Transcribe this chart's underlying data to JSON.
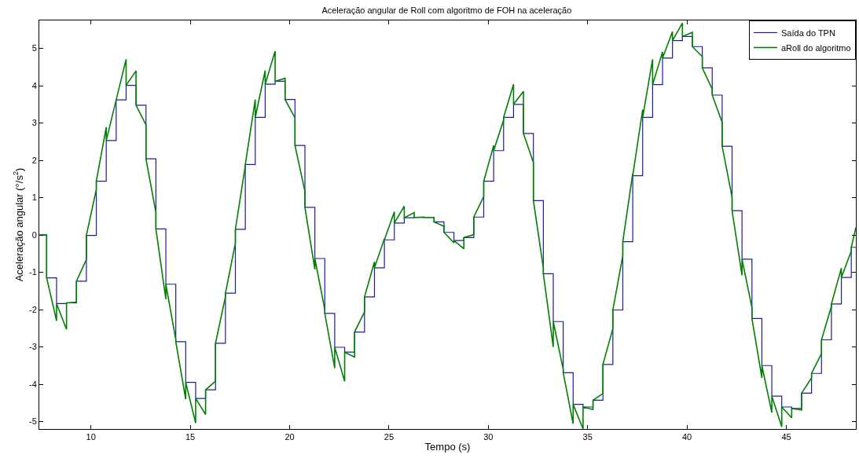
{
  "chart_data": {
    "type": "line",
    "title": "Aceleração angular de Roll com algoritmo de FOH na aceleração",
    "xlabel": "Tempo (s)",
    "ylabel": "Aceleração angular (°/s$^{2}$)",
    "xlim": [
      7.4,
      48.5
    ],
    "xticks": [
      10,
      15,
      20,
      25,
      30,
      35,
      40,
      45
    ],
    "ylim": [
      -5.2,
      5.75
    ],
    "yticks": [
      -5,
      -4,
      -3,
      -2,
      -1,
      0,
      1,
      2,
      3,
      4,
      5
    ],
    "grid": false,
    "legend": "top right",
    "marker": "none",
    "line_style": "solid",
    "series": [
      {
        "name": "Saída do TPN",
        "type": "step",
        "color": "#1c1c9c",
        "x": [
          7.42,
          7.77,
          8.27,
          8.77,
          9.27,
          9.77,
          10.27,
          10.77,
          11.27,
          11.77,
          12.27,
          12.77,
          13.27,
          13.77,
          14.27,
          14.77,
          15.27,
          15.77,
          16.27,
          16.77,
          17.27,
          17.77,
          18.27,
          18.77,
          19.27,
          19.77,
          20.27,
          20.77,
          21.27,
          21.77,
          22.27,
          22.77,
          23.27,
          23.77,
          24.27,
          24.77,
          25.27,
          25.77,
          26.27,
          26.77,
          27.27,
          27.77,
          28.27,
          28.77,
          29.27,
          29.77,
          30.27,
          30.77,
          31.27,
          31.77,
          32.27,
          32.77,
          33.27,
          33.77,
          34.27,
          34.77,
          35.27,
          35.77,
          36.27,
          36.77,
          37.27,
          37.77,
          38.27,
          38.77,
          39.27,
          39.77,
          40.27,
          40.77,
          41.27,
          41.77,
          42.27,
          42.77,
          43.27,
          43.77,
          44.27,
          44.77,
          45.27,
          45.77,
          46.27,
          46.77,
          47.27,
          47.77,
          48.27,
          48.5
        ],
        "values": [
          0,
          -1.15,
          -1.84,
          -1.82,
          -1.24,
          -0.01,
          1.44,
          2.53,
          3.62,
          4.01,
          3.48,
          2.04,
          0.16,
          -1.32,
          -2.86,
          -3.95,
          -4.38,
          -4.15,
          -2.9,
          -1.56,
          0.15,
          1.89,
          3.15,
          4.04,
          4.12,
          3.63,
          2.4,
          0.74,
          -0.63,
          -2.1,
          -3.01,
          -3.14,
          -2.6,
          -1.66,
          -0.88,
          -0.13,
          0.32,
          0.46,
          0.47,
          0.47,
          0.35,
          0.07,
          -0.15,
          -0.07,
          0.48,
          1.44,
          2.26,
          3.15,
          3.5,
          2.72,
          0.92,
          -1.04,
          -2.32,
          -3.69,
          -4.54,
          -4.61,
          -4.43,
          -3.47,
          -2.01,
          -0.18,
          1.59,
          3.15,
          4.03,
          4.74,
          5.21,
          5.32,
          5.05,
          4.48,
          3.75,
          2.38,
          0.65,
          -0.65,
          -2.24,
          -3.5,
          -4.32,
          -4.61,
          -4.65,
          -4.24,
          -3.71,
          -2.81,
          -1.85,
          -1.14,
          -0.33,
          -0.33
        ]
      },
      {
        "name": "aRoll do algoritmo",
        "color": "#008000",
        "x": [
          7.42,
          7.77,
          7.77,
          8.27,
          8.27,
          8.77,
          8.77,
          9.27,
          9.27,
          9.77,
          9.77,
          10.27,
          10.27,
          10.77,
          10.77,
          11.27,
          11.27,
          11.77,
          11.77,
          12.27,
          12.27,
          12.77,
          12.77,
          13.27,
          13.27,
          13.77,
          13.77,
          14.27,
          14.27,
          14.77,
          14.77,
          15.27,
          15.27,
          15.77,
          15.77,
          16.27,
          16.27,
          16.77,
          16.77,
          17.27,
          17.27,
          17.77,
          17.77,
          18.27,
          18.27,
          18.77,
          18.77,
          19.27,
          19.27,
          19.77,
          19.77,
          20.27,
          20.27,
          20.77,
          20.77,
          21.27,
          21.27,
          21.77,
          21.77,
          22.27,
          22.27,
          22.77,
          22.77,
          23.27,
          23.27,
          23.77,
          23.77,
          24.27,
          24.27,
          24.77,
          24.77,
          25.27,
          25.27,
          25.77,
          25.77,
          26.27,
          26.27,
          26.77,
          26.77,
          27.27,
          27.27,
          27.77,
          27.77,
          28.27,
          28.27,
          28.77,
          28.77,
          29.27,
          29.27,
          29.77,
          29.77,
          30.27,
          30.27,
          30.77,
          30.77,
          31.27,
          31.27,
          31.77,
          31.77,
          32.27,
          32.27,
          32.77,
          32.77,
          33.27,
          33.27,
          33.77,
          33.77,
          34.27,
          34.27,
          34.77,
          34.77,
          35.27,
          35.27,
          35.77,
          35.77,
          36.27,
          36.27,
          36.77,
          36.77,
          37.27,
          37.27,
          37.77,
          37.77,
          38.27,
          38.27,
          38.77,
          38.77,
          39.27,
          39.27,
          39.77,
          39.77,
          40.27,
          40.27,
          40.77,
          40.77,
          41.27,
          41.27,
          41.77,
          41.77,
          42.27,
          42.27,
          42.77,
          42.77,
          43.27,
          43.27,
          43.77,
          43.77,
          44.27,
          44.27,
          44.77,
          44.77,
          45.27,
          45.27,
          45.77,
          45.77,
          46.27,
          46.27,
          46.77,
          46.77,
          47.27,
          47.27,
          47.77,
          47.77,
          48.27,
          48.27,
          48.5
        ],
        "values": [
          0,
          0,
          -1.15,
          -2.3,
          -1.84,
          -2.53,
          -1.82,
          -1.8,
          -1.24,
          -0.66,
          -0.01,
          1.22,
          1.44,
          2.89,
          2.53,
          3.62,
          3.62,
          4.71,
          4.01,
          4.4,
          3.48,
          2.95,
          2.04,
          0.6,
          0.16,
          -1.72,
          -1.32,
          -2.8,
          -2.86,
          -4.4,
          -3.95,
          -5.04,
          -4.38,
          -4.81,
          -4.15,
          -3.92,
          -2.9,
          -1.65,
          -1.56,
          -0.22,
          0.15,
          1.86,
          1.89,
          3.63,
          3.15,
          4.41,
          4.04,
          4.93,
          4.12,
          4.2,
          3.63,
          3.14,
          2.4,
          1.17,
          0.74,
          -0.92,
          -0.63,
          -2.0,
          -2.1,
          -3.57,
          -3.01,
          -3.92,
          -3.14,
          -3.27,
          -2.6,
          -2.06,
          -1.66,
          -0.72,
          -0.88,
          -0.1,
          -0.13,
          0.62,
          0.32,
          0.77,
          0.46,
          0.6,
          0.47,
          0.48,
          0.47,
          0.47,
          0.35,
          0.23,
          0.07,
          -0.21,
          -0.15,
          -0.37,
          -0.07,
          0.01,
          0.48,
          1.03,
          1.44,
          2.4,
          2.26,
          3.08,
          3.15,
          4.04,
          3.5,
          3.85,
          2.72,
          1.94,
          0.92,
          -0.88,
          -1.04,
          -3.0,
          -2.32,
          -3.6,
          -3.69,
          -5.06,
          -4.54,
          -5.2,
          -4.61,
          -4.68,
          -4.43,
          -4.25,
          -3.47,
          -2.51,
          -2.01,
          -0.55,
          -0.18,
          1.65,
          1.59,
          3.36,
          3.15,
          4.71,
          4.03,
          4.91,
          4.74,
          5.45,
          5.21,
          5.68,
          5.32,
          5.43,
          5.05,
          4.78,
          4.48,
          3.91,
          3.75,
          3.02,
          2.38,
          1.01,
          0.65,
          -1.08,
          -0.65,
          -1.95,
          -2.24,
          -3.83,
          -3.5,
          -4.76,
          -4.32,
          -5.14,
          -4.61,
          -4.9,
          -4.65,
          -4.69,
          -4.24,
          -3.83,
          -3.71,
          -3.18,
          -2.81,
          -1.91,
          -1.85,
          -0.89,
          -1.14,
          -0.43,
          -0.33,
          0.2
        ]
      }
    ]
  }
}
